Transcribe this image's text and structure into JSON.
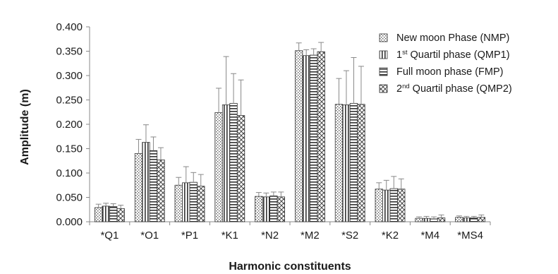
{
  "chart_data": {
    "type": "bar",
    "xlabel": "Harmonic constituents",
    "ylabel": "Amplitude (m)",
    "ylim": [
      0,
      0.4
    ],
    "yticks": [
      "0.000",
      "0.050",
      "0.100",
      "0.150",
      "0.200",
      "0.250",
      "0.300",
      "0.350",
      "0.400"
    ],
    "categories": [
      "*Q1",
      "*O1",
      "*P1",
      "*K1",
      "*N2",
      "*M2",
      "*S2",
      "*K2",
      "*M4",
      "*MS4"
    ],
    "series": [
      {
        "name": "New moon Phase (NMP)",
        "legend_parts": [
          "New moon Phase (NMP)"
        ],
        "pattern": "dots",
        "values": [
          0.029,
          0.14,
          0.075,
          0.224,
          0.052,
          0.351,
          0.241,
          0.067,
          0.007,
          0.009
        ],
        "errors": [
          0.007,
          0.029,
          0.016,
          0.05,
          0.008,
          0.016,
          0.053,
          0.013,
          0.003,
          0.003
        ]
      },
      {
        "name": "1st Quartil phase (QMP1)",
        "legend_parts": [
          "1",
          "st",
          " Quartil phase (QMP1)"
        ],
        "pattern": "vlines",
        "values": [
          0.032,
          0.163,
          0.08,
          0.24,
          0.051,
          0.341,
          0.24,
          0.065,
          0.007,
          0.008
        ],
        "errors": [
          0.006,
          0.036,
          0.033,
          0.099,
          0.008,
          0.012,
          0.07,
          0.02,
          0.004,
          0.003
        ]
      },
      {
        "name": "Full moon phase (FMP)",
        "legend_parts": [
          "Full moon phase (FMP)"
        ],
        "pattern": "hlines",
        "values": [
          0.031,
          0.146,
          0.081,
          0.243,
          0.053,
          0.342,
          0.243,
          0.068,
          0.006,
          0.008
        ],
        "errors": [
          0.006,
          0.028,
          0.02,
          0.061,
          0.008,
          0.013,
          0.094,
          0.025,
          0.004,
          0.003
        ]
      },
      {
        "name": "2nd Quartil phase (QMP2)",
        "legend_parts": [
          "2",
          "nd",
          " Quartil phase (QMP2)"
        ],
        "pattern": "crosshatch",
        "values": [
          0.027,
          0.127,
          0.073,
          0.218,
          0.051,
          0.349,
          0.241,
          0.067,
          0.008,
          0.009
        ],
        "errors": [
          0.007,
          0.025,
          0.024,
          0.073,
          0.01,
          0.019,
          0.078,
          0.021,
          0.006,
          0.005
        ]
      }
    ],
    "grid": false,
    "legend_position": "top-right"
  }
}
